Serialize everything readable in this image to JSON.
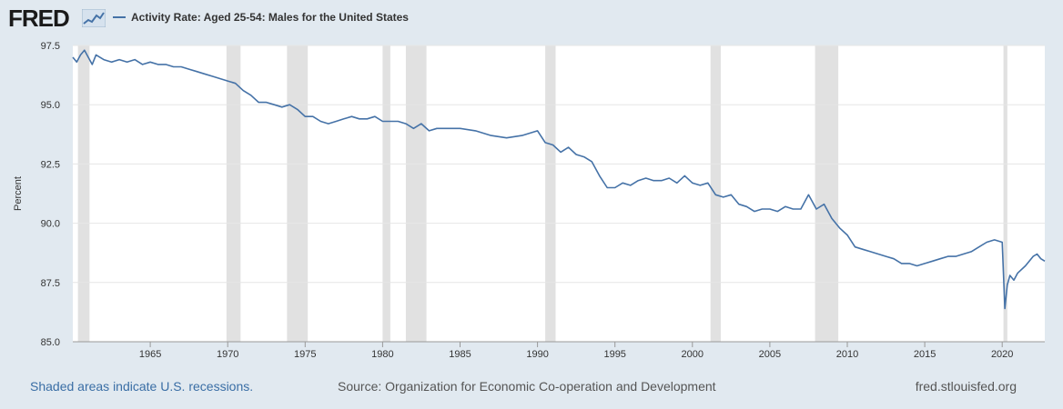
{
  "brand": {
    "logo_text": "FRED"
  },
  "legend": {
    "label": "Activity Rate: Aged 25-54: Males for the United States",
    "color": "#4572a7"
  },
  "footer": {
    "recession_note": "Shaded areas indicate U.S. recessions.",
    "source": "Source: Organization for Economic Co-operation and Development",
    "site": "fred.stlouisfed.org"
  },
  "colors": {
    "background": "#e1e9f0",
    "plot_background": "#ffffff",
    "recession_shade": "#e1e1e1",
    "line": "#4572a7",
    "link": "#3a6ea5"
  },
  "chart_data": {
    "type": "line",
    "title": "Activity Rate: Aged 25-54: Males for the United States",
    "xlabel": "",
    "ylabel": "Percent",
    "xlim": [
      1960.0,
      2022.75
    ],
    "ylim": [
      85.0,
      97.5
    ],
    "x_ticks": [
      1965,
      1970,
      1975,
      1980,
      1985,
      1990,
      1995,
      2000,
      2005,
      2010,
      2015,
      2020
    ],
    "y_ticks": [
      85.0,
      87.5,
      90.0,
      92.5,
      95.0,
      97.5
    ],
    "y_tick_labels": [
      "85.0",
      "87.5",
      "90.0",
      "92.5",
      "95.0",
      "97.5"
    ],
    "grid": true,
    "legend_position": "top-left",
    "recessions": [
      [
        1960.33,
        1961.08
      ],
      [
        1969.92,
        1970.83
      ],
      [
        1973.83,
        1975.17
      ],
      [
        1980.0,
        1980.5
      ],
      [
        1981.5,
        1982.83
      ],
      [
        1990.5,
        1991.17
      ],
      [
        2001.17,
        2001.83
      ],
      [
        2007.92,
        2009.42
      ],
      [
        2020.08,
        2020.33
      ]
    ],
    "series": [
      {
        "name": "Activity Rate: Aged 25-54: Males for the United States",
        "x": [
          1960.0,
          1960.25,
          1960.5,
          1960.75,
          1961.0,
          1961.25,
          1961.5,
          1962.0,
          1962.5,
          1963.0,
          1963.5,
          1964.0,
          1964.5,
          1965.0,
          1965.5,
          1966.0,
          1966.5,
          1967.0,
          1967.5,
          1968.0,
          1968.5,
          1969.0,
          1969.5,
          1970.0,
          1970.5,
          1971.0,
          1971.5,
          1972.0,
          1972.5,
          1973.0,
          1973.5,
          1974.0,
          1974.5,
          1975.0,
          1975.5,
          1976.0,
          1976.5,
          1977.0,
          1977.5,
          1978.0,
          1978.5,
          1979.0,
          1979.5,
          1980.0,
          1980.5,
          1981.0,
          1981.5,
          1982.0,
          1982.5,
          1983.0,
          1983.5,
          1984.0,
          1985.0,
          1986.0,
          1987.0,
          1988.0,
          1989.0,
          1990.0,
          1990.5,
          1991.0,
          1991.5,
          1992.0,
          1992.5,
          1993.0,
          1993.5,
          1994.0,
          1994.5,
          1995.0,
          1995.5,
          1996.0,
          1996.5,
          1997.0,
          1997.5,
          1998.0,
          1998.5,
          1999.0,
          1999.5,
          2000.0,
          2000.5,
          2001.0,
          2001.5,
          2002.0,
          2002.5,
          2003.0,
          2003.5,
          2004.0,
          2004.5,
          2005.0,
          2005.5,
          2006.0,
          2006.5,
          2007.0,
          2007.5,
          2008.0,
          2008.5,
          2009.0,
          2009.5,
          2010.0,
          2010.5,
          2011.0,
          2011.5,
          2012.0,
          2012.5,
          2013.0,
          2013.5,
          2014.0,
          2014.5,
          2015.0,
          2015.5,
          2016.0,
          2016.5,
          2017.0,
          2017.5,
          2018.0,
          2018.5,
          2019.0,
          2019.5,
          2020.0,
          2020.17,
          2020.33,
          2020.5,
          2020.75,
          2021.0,
          2021.5,
          2022.0,
          2022.25,
          2022.5,
          2022.75
        ],
        "values": [
          97.0,
          96.8,
          97.1,
          97.3,
          97.0,
          96.7,
          97.1,
          96.9,
          96.8,
          96.9,
          96.8,
          96.9,
          96.7,
          96.8,
          96.7,
          96.7,
          96.6,
          96.6,
          96.5,
          96.4,
          96.3,
          96.2,
          96.1,
          96.0,
          95.9,
          95.6,
          95.4,
          95.1,
          95.1,
          95.0,
          94.9,
          95.0,
          94.8,
          94.5,
          94.5,
          94.3,
          94.2,
          94.3,
          94.4,
          94.5,
          94.4,
          94.4,
          94.5,
          94.3,
          94.3,
          94.3,
          94.2,
          94.0,
          94.2,
          93.9,
          94.0,
          94.0,
          94.0,
          93.9,
          93.7,
          93.6,
          93.7,
          93.9,
          93.4,
          93.3,
          93.0,
          93.2,
          92.9,
          92.8,
          92.6,
          92.0,
          91.5,
          91.5,
          91.7,
          91.6,
          91.8,
          91.9,
          91.8,
          91.8,
          91.9,
          91.7,
          92.0,
          91.7,
          91.6,
          91.7,
          91.2,
          91.1,
          91.2,
          90.8,
          90.7,
          90.5,
          90.6,
          90.6,
          90.5,
          90.7,
          90.6,
          90.6,
          91.2,
          90.6,
          90.8,
          90.2,
          89.8,
          89.5,
          89.0,
          88.9,
          88.8,
          88.7,
          88.6,
          88.5,
          88.3,
          88.3,
          88.2,
          88.3,
          88.4,
          88.5,
          88.6,
          88.6,
          88.7,
          88.8,
          89.0,
          89.2,
          89.3,
          89.2,
          86.4,
          87.4,
          87.8,
          87.6,
          87.9,
          88.2,
          88.6,
          88.7,
          88.5,
          88.4
        ]
      }
    ]
  }
}
